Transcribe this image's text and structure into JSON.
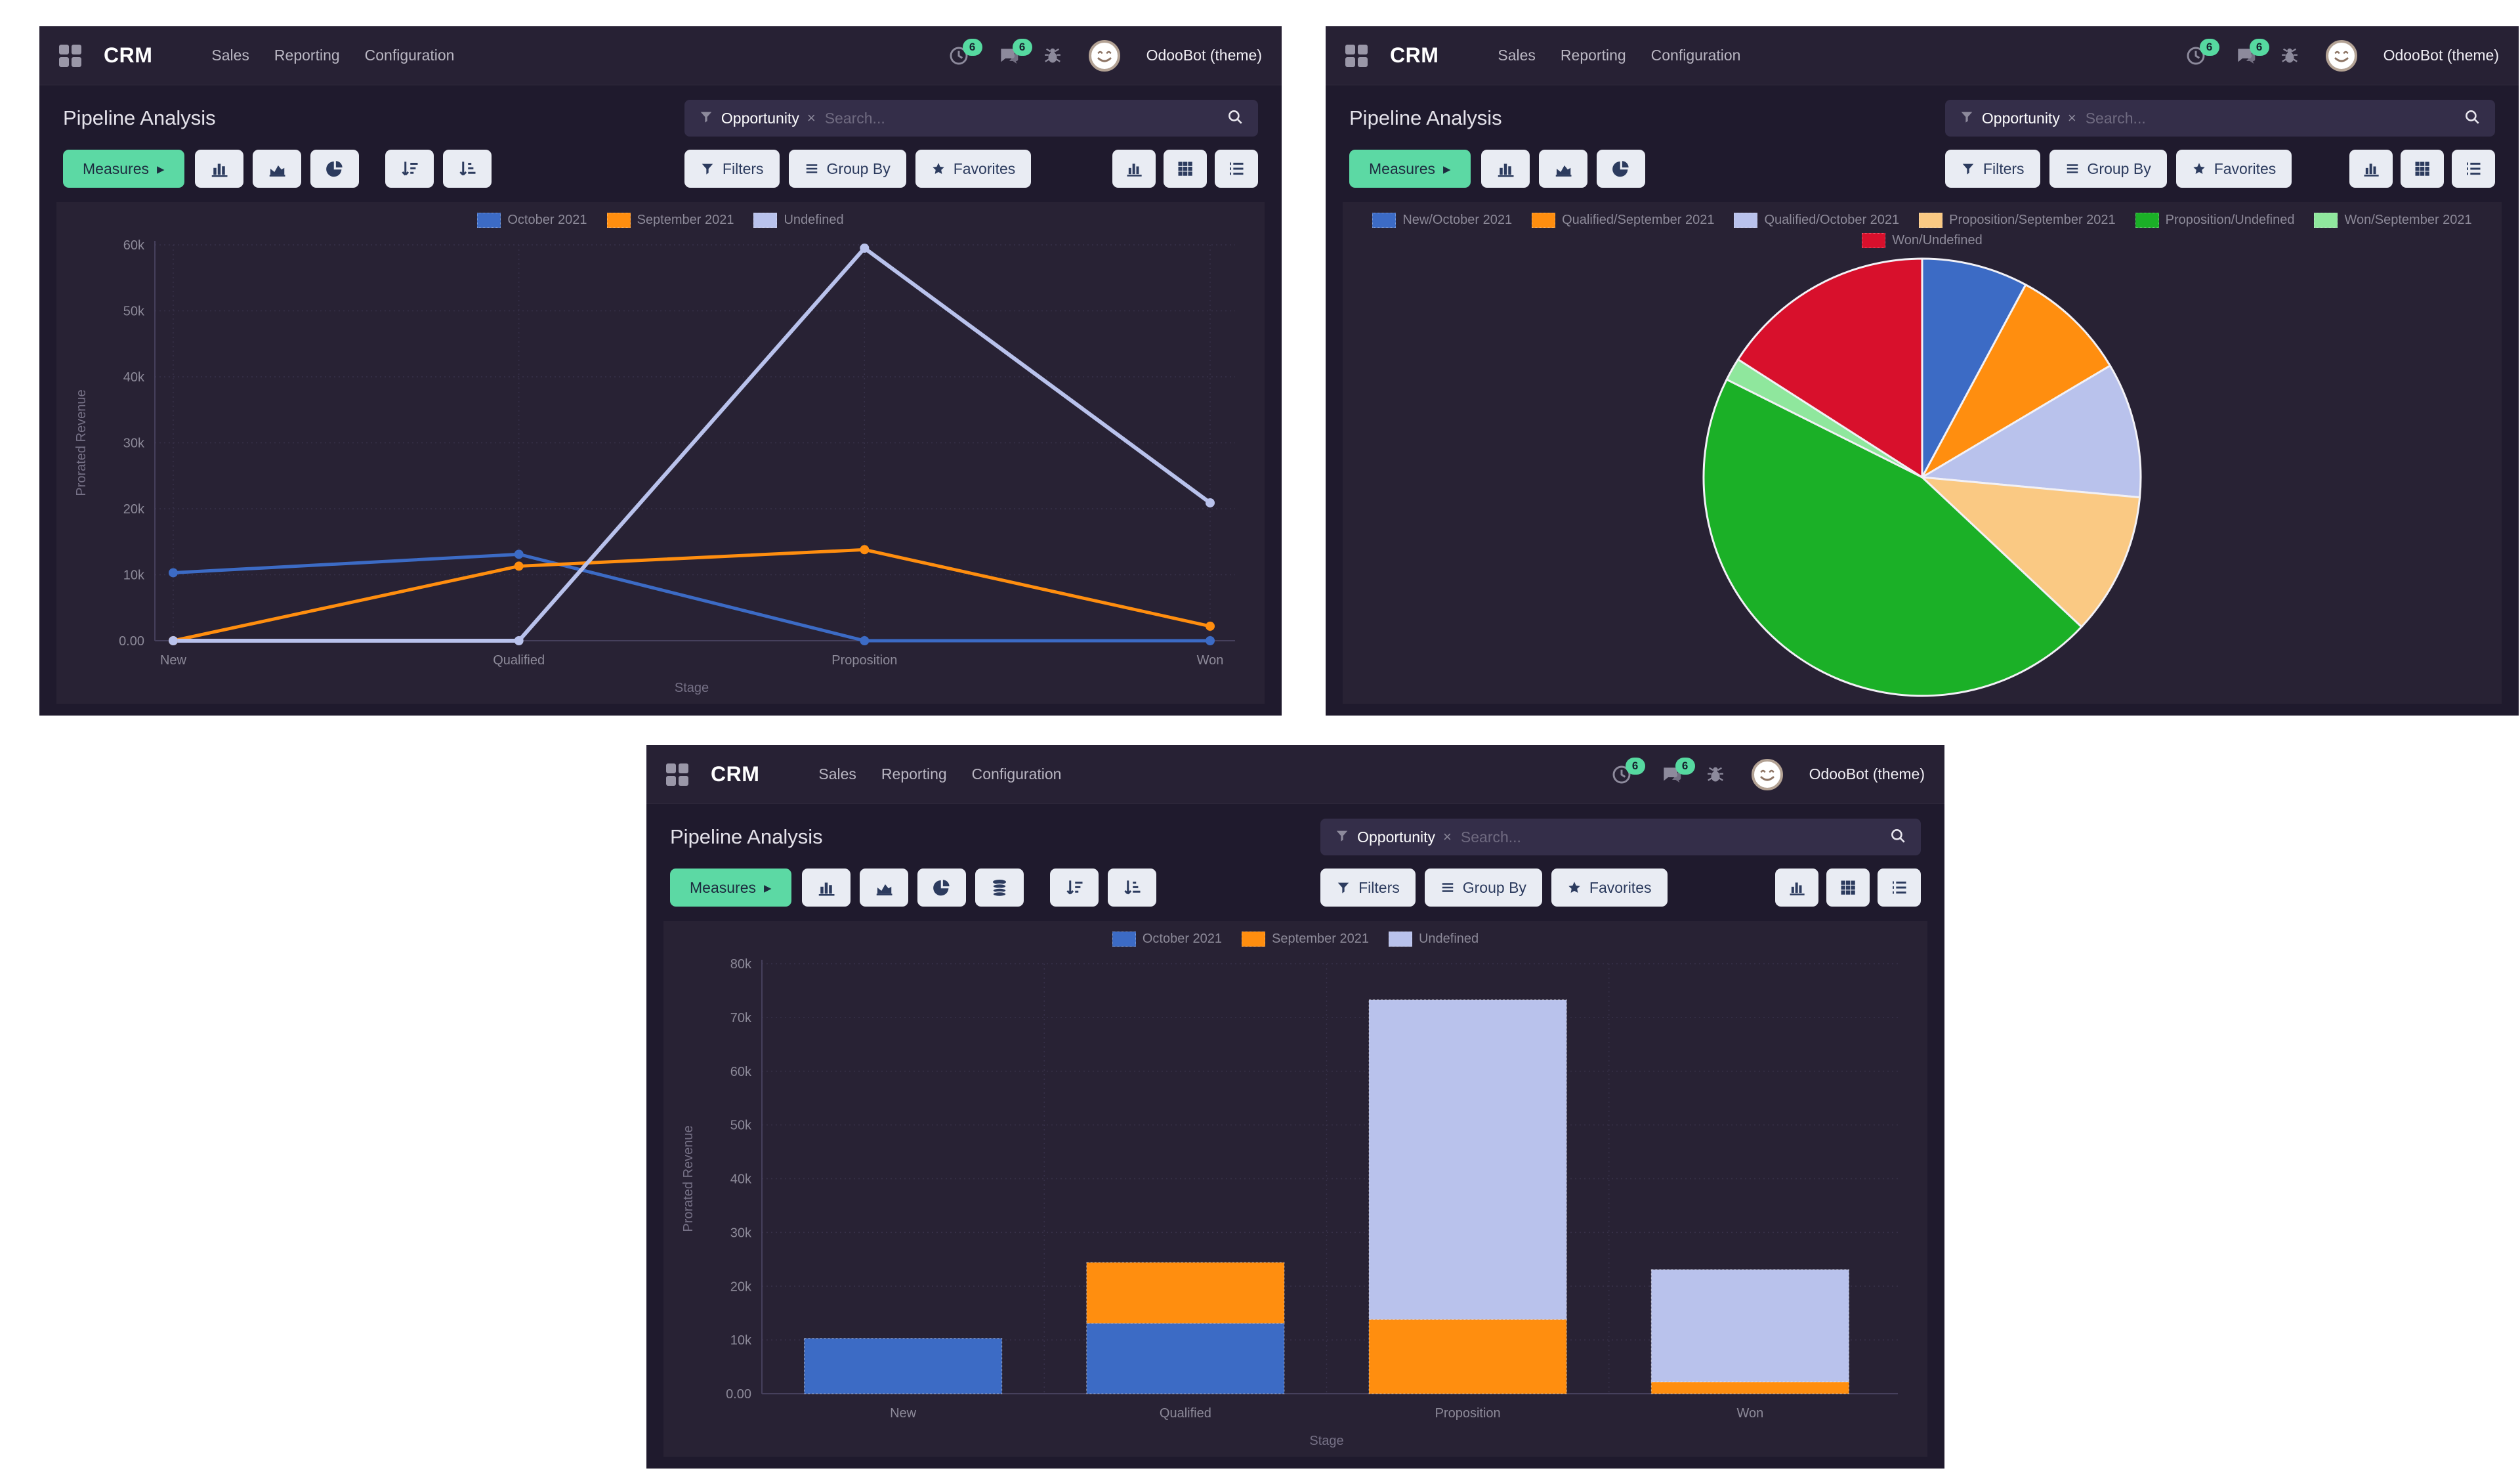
{
  "app": {
    "name": "CRM",
    "menus": {
      "sales": "Sales",
      "reporting": "Reporting",
      "configuration": "Configuration"
    },
    "activity_count": "6",
    "message_count": "6",
    "user_name": "OdooBot (theme)"
  },
  "page": {
    "title": "Pipeline Analysis"
  },
  "search": {
    "facet_label": "Opportunity",
    "remove_glyph": "×",
    "placeholder": "Search..."
  },
  "toolbar": {
    "measures_label": "Measures",
    "measures_caret": "▸",
    "filters_label": "Filters",
    "group_by_label": "Group By",
    "favorites_label": "Favorites"
  },
  "colors": {
    "accent_green": "#5cd9a4",
    "badge_green": "#56d9a0",
    "blue": "#3c6bc5",
    "orange": "#ff8e0f",
    "lavender": "#b9c2ec",
    "peach": "#fac983",
    "green": "#1bb027",
    "light_green": "#8fe79d",
    "red": "#d8102c"
  },
  "chart_data": [
    {
      "type": "line",
      "title": "Pipeline Analysis",
      "categories": [
        "New",
        "Qualified",
        "Proposition",
        "Won"
      ],
      "series": [
        {
          "name": "October 2021",
          "color": "#3c6bc5",
          "values": [
            10300,
            13100,
            0,
            0
          ]
        },
        {
          "name": "September 2021",
          "color": "#ff8e0f",
          "values": [
            0,
            11300,
            13800,
            2200
          ]
        },
        {
          "name": "Undefined",
          "color": "#b9c2ec",
          "values": [
            0,
            0,
            59500,
            20900
          ]
        }
      ],
      "xlabel": "Stage",
      "ylabel": "Prorated Revenue",
      "ylim": [
        0,
        60000
      ],
      "yticks": [
        "0.00",
        "10k",
        "20k",
        "30k",
        "40k",
        "50k",
        "60k"
      ],
      "grid": true,
      "legend_position": "top"
    },
    {
      "type": "pie",
      "title": "Pipeline Analysis",
      "slices": [
        {
          "name": "New/October 2021",
          "color": "#3c6bc5",
          "value": 10300
        },
        {
          "name": "Qualified/September 2021",
          "color": "#ff8e0f",
          "value": 11300
        },
        {
          "name": "Qualified/October 2021",
          "color": "#b9c2ec",
          "value": 13100
        },
        {
          "name": "Proposition/September 2021",
          "color": "#fac983",
          "value": 13800
        },
        {
          "name": "Proposition/Undefined",
          "color": "#1bb027",
          "value": 59500
        },
        {
          "name": "Won/September 2021",
          "color": "#8fe79d",
          "value": 2200
        },
        {
          "name": "Won/Undefined",
          "color": "#d8102c",
          "value": 20900
        }
      ],
      "legend_position": "top",
      "legend_rows": [
        6,
        1
      ]
    },
    {
      "type": "bar",
      "stacked": true,
      "title": "Pipeline Analysis",
      "categories": [
        "New",
        "Qualified",
        "Proposition",
        "Won"
      ],
      "series": [
        {
          "name": "October 2021",
          "color": "#3c6bc5",
          "values": [
            10300,
            13100,
            0,
            0
          ]
        },
        {
          "name": "September 2021",
          "color": "#ff8e0f",
          "values": [
            0,
            11300,
            13800,
            2200
          ]
        },
        {
          "name": "Undefined",
          "color": "#b9c2ec",
          "values": [
            0,
            0,
            59500,
            20900
          ]
        }
      ],
      "xlabel": "Stage",
      "ylabel": "Prorated Revenue",
      "ylim": [
        0,
        80000
      ],
      "yticks": [
        "0.00",
        "10k",
        "20k",
        "30k",
        "40k",
        "50k",
        "60k",
        "70k",
        "80k"
      ],
      "grid": true,
      "legend_position": "top"
    }
  ]
}
